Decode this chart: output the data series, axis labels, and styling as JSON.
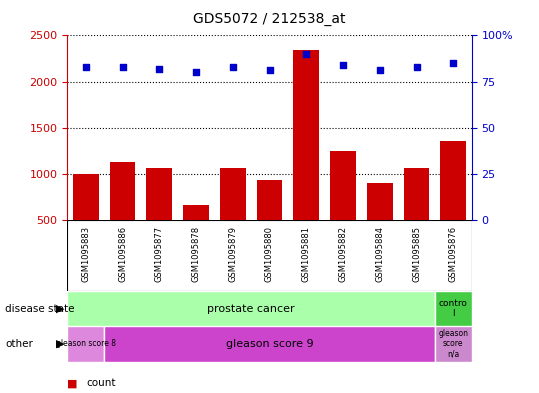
{
  "title": "GDS5072 / 212538_at",
  "samples": [
    "GSM1095883",
    "GSM1095886",
    "GSM1095877",
    "GSM1095878",
    "GSM1095879",
    "GSM1095880",
    "GSM1095881",
    "GSM1095882",
    "GSM1095884",
    "GSM1095885",
    "GSM1095876"
  ],
  "counts": [
    1000,
    1130,
    1060,
    660,
    1060,
    930,
    2340,
    1250,
    900,
    1060,
    1360
  ],
  "percentiles": [
    83,
    83,
    82,
    80,
    83,
    81,
    90,
    84,
    81,
    83,
    85
  ],
  "ylim_left": [
    500,
    2500
  ],
  "ylim_right": [
    0,
    100
  ],
  "yticks_left": [
    500,
    1000,
    1500,
    2000,
    2500
  ],
  "yticks_right": [
    0,
    25,
    50,
    75,
    100
  ],
  "bar_color": "#cc0000",
  "dot_color": "#0000cc",
  "bg_color": "#cccccc",
  "prostate_color": "#aaffaa",
  "control_color": "#44cc44",
  "gleason8_color": "#dd88dd",
  "gleason9_color": "#cc44cc",
  "gleasonNA_color": "#cc88cc",
  "tick_color_left": "#cc0000",
  "tick_color_right": "#0000cc"
}
